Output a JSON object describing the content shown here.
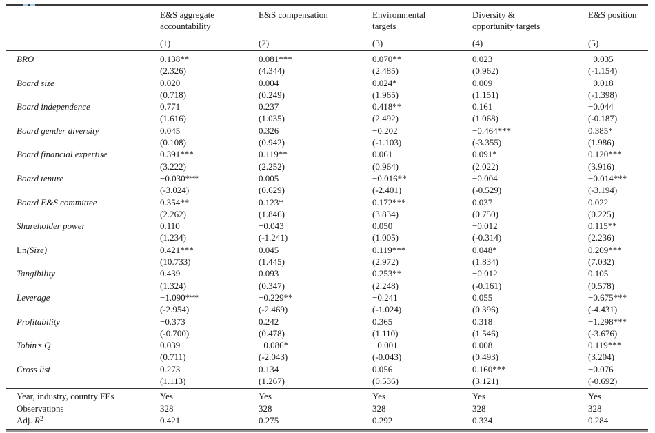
{
  "page": {
    "artifact_color": "#a9cfe8"
  },
  "table": {
    "columns": [
      {
        "header_lines": [
          "E&S aggregate",
          "accountability"
        ],
        "number": "(1)"
      },
      {
        "header_lines": [
          "E&S compensation"
        ],
        "number": "(2)"
      },
      {
        "header_lines": [
          "Environmental",
          "targets"
        ],
        "number": "(3)"
      },
      {
        "header_lines": [
          "Diversity &",
          "opportunity targets"
        ],
        "number": "(4)"
      },
      {
        "header_lines": [
          "E&S position"
        ],
        "number": "(5)"
      }
    ],
    "rows": [
      {
        "label_parts": [
          {
            "text": "BRO",
            "style": "italic"
          }
        ],
        "coefs": [
          "0.138**",
          "0.081***",
          "0.070**",
          "0.023",
          "−0.035"
        ],
        "tstats": [
          "(2.326)",
          "(4.344)",
          "(2.485)",
          "(0.962)",
          "(-1.154)"
        ]
      },
      {
        "label_parts": [
          {
            "text": "Board size",
            "style": "italic"
          }
        ],
        "coefs": [
          "0.020",
          "0.004",
          "0.024*",
          "0.009",
          "−0.018"
        ],
        "tstats": [
          "(0.718)",
          "(0.249)",
          "(1.965)",
          "(1.151)",
          "(-1.398)"
        ]
      },
      {
        "label_parts": [
          {
            "text": "Board independence",
            "style": "italic"
          }
        ],
        "coefs": [
          "0.771",
          "0.237",
          "0.418**",
          "0.161",
          "−0.044"
        ],
        "tstats": [
          "(1.616)",
          "(1.035)",
          "(2.492)",
          "(1.068)",
          "(-0.187)"
        ]
      },
      {
        "label_parts": [
          {
            "text": "Board gender diversity",
            "style": "italic"
          }
        ],
        "coefs": [
          "0.045",
          "0.326",
          "−0.202",
          "−0.464***",
          "0.385*"
        ],
        "tstats": [
          "(0.108)",
          "(0.942)",
          "(-1.103)",
          "(-3.355)",
          "(1.986)"
        ]
      },
      {
        "label_parts": [
          {
            "text": "Board financial expertise",
            "style": "italic"
          }
        ],
        "coefs": [
          "0.391***",
          "0.119**",
          "0.061",
          "0.091*",
          "0.120***"
        ],
        "tstats": [
          "(3.222)",
          "(2.252)",
          "(0.964)",
          "(2.022)",
          "(3.916)"
        ]
      },
      {
        "label_parts": [
          {
            "text": "Board tenure",
            "style": "italic"
          }
        ],
        "coefs": [
          "−0.030***",
          "0.005",
          "−0.016**",
          "−0.004",
          "−0.014***"
        ],
        "tstats": [
          "(-3.024)",
          "(0.629)",
          "(-2.401)",
          "(-0.529)",
          "(-3.194)"
        ]
      },
      {
        "label_parts": [
          {
            "text": "Board E&S committee",
            "style": "italic"
          }
        ],
        "coefs": [
          "0.354**",
          "0.123*",
          "0.172***",
          "0.037",
          "0.022"
        ],
        "tstats": [
          "(2.262)",
          "(1.846)",
          "(3.834)",
          "(0.750)",
          "(0.225)"
        ]
      },
      {
        "label_parts": [
          {
            "text": "Shareholder power",
            "style": "italic"
          }
        ],
        "coefs": [
          "0.110",
          "−0.043",
          "0.050",
          "−0.012",
          "0.115**"
        ],
        "tstats": [
          "(1.234)",
          "(-1.241)",
          "(1.005)",
          "(-0.314)",
          "(2.236)"
        ]
      },
      {
        "label_parts": [
          {
            "text": "Ln",
            "style": "roman"
          },
          {
            "text": "(Size)",
            "style": "italic"
          }
        ],
        "coefs": [
          "0.421***",
          "0.045",
          "0.119***",
          "0.048*",
          "0.209***"
        ],
        "tstats": [
          "(10.733)",
          "(1.445)",
          "(2.972)",
          "(1.834)",
          "(7.032)"
        ]
      },
      {
        "label_parts": [
          {
            "text": "Tangibility",
            "style": "italic"
          }
        ],
        "coefs": [
          "0.439",
          "0.093",
          "0.253**",
          "−0.012",
          "0.105"
        ],
        "tstats": [
          "(1.324)",
          "(0.347)",
          "(2.248)",
          "(-0.161)",
          "(0.578)"
        ]
      },
      {
        "label_parts": [
          {
            "text": "Leverage",
            "style": "italic"
          }
        ],
        "coefs": [
          "−1.090***",
          "−0.229**",
          "−0.241",
          "0.055",
          "−0.675***"
        ],
        "tstats": [
          "(-2.954)",
          "(-2.469)",
          "(-1.024)",
          "(0.396)",
          "(-4.431)"
        ]
      },
      {
        "label_parts": [
          {
            "text": "Profitability",
            "style": "italic"
          }
        ],
        "coefs": [
          "−0.373",
          "0.242",
          "0.365",
          "0.318",
          "−1.298***"
        ],
        "tstats": [
          "(-0.700)",
          "(0.478)",
          "(1.110)",
          "(1.546)",
          "(-3.676)"
        ]
      },
      {
        "label_parts": [
          {
            "text": "Tobin’s Q",
            "style": "italic"
          }
        ],
        "coefs": [
          "0.039",
          "−0.086*",
          "−0.001",
          "0.008",
          "0.119***"
        ],
        "tstats": [
          "(0.711)",
          "(-2.043)",
          "(-0.043)",
          "(0.493)",
          "(3.204)"
        ]
      },
      {
        "label_parts": [
          {
            "text": "Cross list",
            "style": "italic"
          }
        ],
        "coefs": [
          "0.273",
          "0.134",
          "0.056",
          "0.160***",
          "−0.076"
        ],
        "tstats": [
          "(1.113)",
          "(1.267)",
          "(0.536)",
          "(3.121)",
          "(-0.692)"
        ]
      }
    ],
    "footer_rows": [
      {
        "label_parts": [
          {
            "text": "Year, industry, country FEs",
            "style": "roman"
          }
        ],
        "values": [
          "Yes",
          "Yes",
          "Yes",
          "Yes",
          "Yes"
        ]
      },
      {
        "label_parts": [
          {
            "text": "Observations",
            "style": "roman"
          }
        ],
        "values": [
          "328",
          "328",
          "328",
          "328",
          "328"
        ]
      },
      {
        "label_parts": [
          {
            "text": "Adj. ",
            "style": "roman"
          },
          {
            "text": "R",
            "style": "italic"
          },
          {
            "text": "2",
            "style": "sup"
          }
        ],
        "values": [
          "0.421",
          "0.275",
          "0.292",
          "0.334",
          "0.284"
        ]
      }
    ]
  }
}
